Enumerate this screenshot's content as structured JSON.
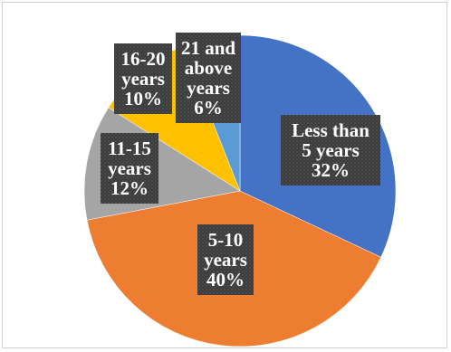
{
  "chart_data": {
    "type": "pie",
    "title": "",
    "slices": [
      {
        "label": "Less than 5 years",
        "value": 32,
        "color": "#4472C4",
        "label_lines": [
          "Less than",
          "5 years",
          "32%"
        ]
      },
      {
        "label": "5-10 years",
        "value": 40,
        "color": "#ED7D31",
        "label_lines": [
          "5-10",
          "years",
          "40%"
        ]
      },
      {
        "label": "11-15 years",
        "value": 12,
        "color": "#A5A5A5",
        "label_lines": [
          "11-15",
          "years",
          "12%"
        ]
      },
      {
        "label": "16-20 years",
        "value": 10,
        "color": "#FFC000",
        "label_lines": [
          "16-20",
          "years",
          "10%"
        ]
      },
      {
        "label": "21 and above years",
        "value": 6,
        "color": "#5B9BD5",
        "label_lines": [
          "21 and",
          "above",
          "years",
          "6%"
        ]
      }
    ],
    "label_box_color": "#3a3a3a",
    "legend": "none"
  }
}
